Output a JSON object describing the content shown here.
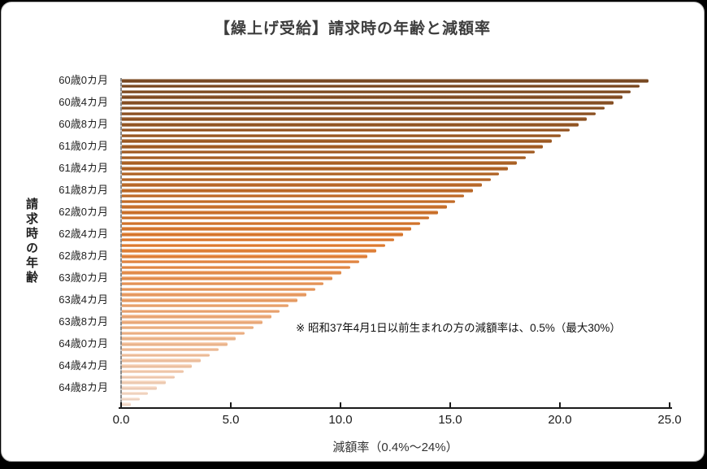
{
  "page": {
    "background_color": "#000000",
    "card_background": "#ffffff",
    "card_border_color": "#b5b5b5"
  },
  "title": "【繰上げ受給】請求時の年齢と減額率",
  "annotation": "※ 昭和37年4月1日以前生まれの方の減額率は、0.5%（最大30%）",
  "chart_data": {
    "type": "bar",
    "orientation": "horizontal",
    "title": "【繰上げ受給】請求時の年齢と減額率",
    "xlabel": "減額率（0.4%～24%）",
    "ylabel": "請求時の年齢",
    "xlim": [
      0,
      25
    ],
    "xticks": [
      0,
      5,
      10,
      15,
      20,
      25
    ],
    "xtick_labels": [
      "0.0",
      "5.0",
      "10.0",
      "15.0",
      "20.0",
      "25.0"
    ],
    "ytick_labels": [
      "60歳0カ月",
      "60歳4カ月",
      "60歳8カ月",
      "61歳0カ月",
      "61歳4カ月",
      "61歳8カ月",
      "62歳0カ月",
      "62歳4カ月",
      "62歳8カ月",
      "63歳0カ月",
      "63歳4カ月",
      "63歳8カ月",
      "64歳0カ月",
      "64歳4カ月",
      "64歳8カ月"
    ],
    "ytick_every": 4,
    "grid": false,
    "legend": null,
    "bar_color_stops": [
      "#6D370C",
      "#A5520F",
      "#E0701C",
      "#EFA873",
      "#F7DCCA"
    ],
    "categories": [
      "60歳0カ月",
      "60歳1カ月",
      "60歳2カ月",
      "60歳3カ月",
      "60歳4カ月",
      "60歳5カ月",
      "60歳6カ月",
      "60歳7カ月",
      "60歳8カ月",
      "60歳9カ月",
      "60歳10カ月",
      "60歳11カ月",
      "61歳0カ月",
      "61歳1カ月",
      "61歳2カ月",
      "61歳3カ月",
      "61歳4カ月",
      "61歳5カ月",
      "61歳6カ月",
      "61歳7カ月",
      "61歳8カ月",
      "61歳9カ月",
      "61歳10カ月",
      "61歳11カ月",
      "62歳0カ月",
      "62歳1カ月",
      "62歳2カ月",
      "62歳3カ月",
      "62歳4カ月",
      "62歳5カ月",
      "62歳6カ月",
      "62歳7カ月",
      "62歳8カ月",
      "62歳9カ月",
      "62歳10カ月",
      "62歳11カ月",
      "63歳0カ月",
      "63歳1カ月",
      "63歳2カ月",
      "63歳3カ月",
      "63歳4カ月",
      "63歳5カ月",
      "63歳6カ月",
      "63歳7カ月",
      "63歳8カ月",
      "63歳9カ月",
      "63歳10カ月",
      "63歳11カ月",
      "64歳0カ月",
      "64歳1カ月",
      "64歳2カ月",
      "64歳3カ月",
      "64歳4カ月",
      "64歳5カ月",
      "64歳6カ月",
      "64歳7カ月",
      "64歳8カ月",
      "64歳9カ月",
      "64歳10カ月",
      "64歳11カ月"
    ],
    "values": [
      24.0,
      23.6,
      23.2,
      22.8,
      22.4,
      22.0,
      21.6,
      21.2,
      20.8,
      20.4,
      20.0,
      19.6,
      19.2,
      18.8,
      18.4,
      18.0,
      17.6,
      17.2,
      16.8,
      16.4,
      16.0,
      15.6,
      15.2,
      14.8,
      14.4,
      14.0,
      13.6,
      13.2,
      12.8,
      12.4,
      12.0,
      11.6,
      11.2,
      10.8,
      10.4,
      10.0,
      9.6,
      9.2,
      8.8,
      8.4,
      8.0,
      7.6,
      7.2,
      6.8,
      6.4,
      6.0,
      5.6,
      5.2,
      4.8,
      4.4,
      4.0,
      3.6,
      3.2,
      2.8,
      2.4,
      2.0,
      1.6,
      1.2,
      0.8,
      0.4
    ]
  }
}
